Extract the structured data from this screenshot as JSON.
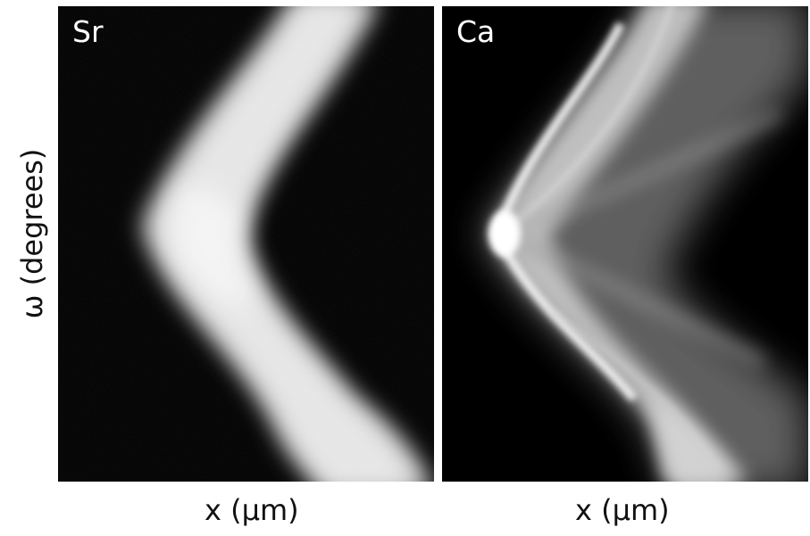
{
  "figure": {
    "panels": [
      {
        "id": "sr",
        "label": "Sr"
      },
      {
        "id": "ca",
        "label": "Ca"
      }
    ],
    "x_axis_label": "x (μm)",
    "y_axis_label": "ω (degrees)",
    "colors": {
      "background": "#000000",
      "signal": "#ffffff",
      "text": "#111111"
    }
  }
}
